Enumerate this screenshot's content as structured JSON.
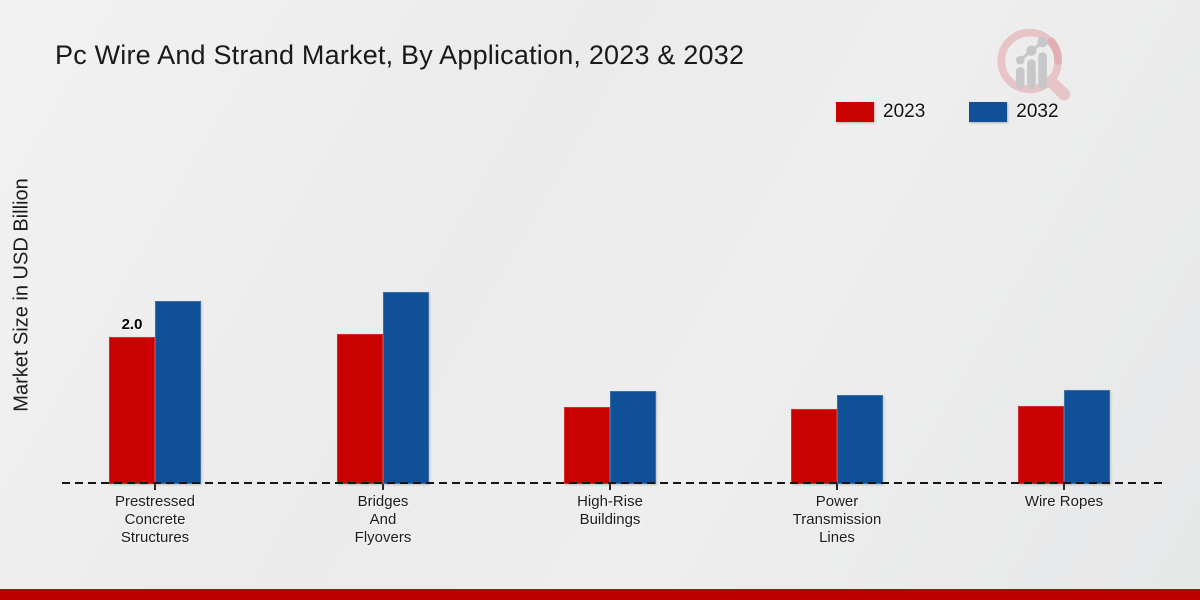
{
  "chart_data": {
    "type": "bar",
    "title": "Pc Wire And Strand Market, By Application, 2023 & 2032",
    "ylabel": "Market Size in USD Billion",
    "xlabel": "",
    "categories": [
      "Prestressed Concrete Structures",
      "Bridges And Flyovers",
      "High-Rise Buildings",
      "Power Transmission Lines",
      "Wire Ropes"
    ],
    "category_label_lines": [
      [
        "Prestressed",
        "Concrete",
        "Structures"
      ],
      [
        "Bridges",
        "And",
        "Flyovers"
      ],
      [
        "High-Rise",
        "Buildings"
      ],
      [
        "Power",
        "Transmission",
        "Lines"
      ],
      [
        "Wire Ropes"
      ]
    ],
    "series": [
      {
        "name": "2023",
        "color": "#c90101",
        "values": [
          2.0,
          2.05,
          1.05,
          1.02,
          1.07
        ]
      },
      {
        "name": "2032",
        "color": "#0f5096",
        "values": [
          2.5,
          2.62,
          1.27,
          1.22,
          1.28
        ]
      }
    ],
    "annotations": [
      {
        "series_index": 0,
        "category_index": 0,
        "text": "2.0"
      }
    ],
    "ylim": [
      0,
      3.2
    ],
    "grid": false,
    "legend_position": "top-right",
    "baseline_style": "dashed",
    "unit": "USD Billion"
  },
  "footer": {
    "accent_color": "#bb0101"
  },
  "logo": {
    "name": "magnifier-bar-chart-logo",
    "ring_color": "#e7c5c7",
    "accent_color": "#e0a9ab",
    "bar_color": "#c7c7c9"
  }
}
